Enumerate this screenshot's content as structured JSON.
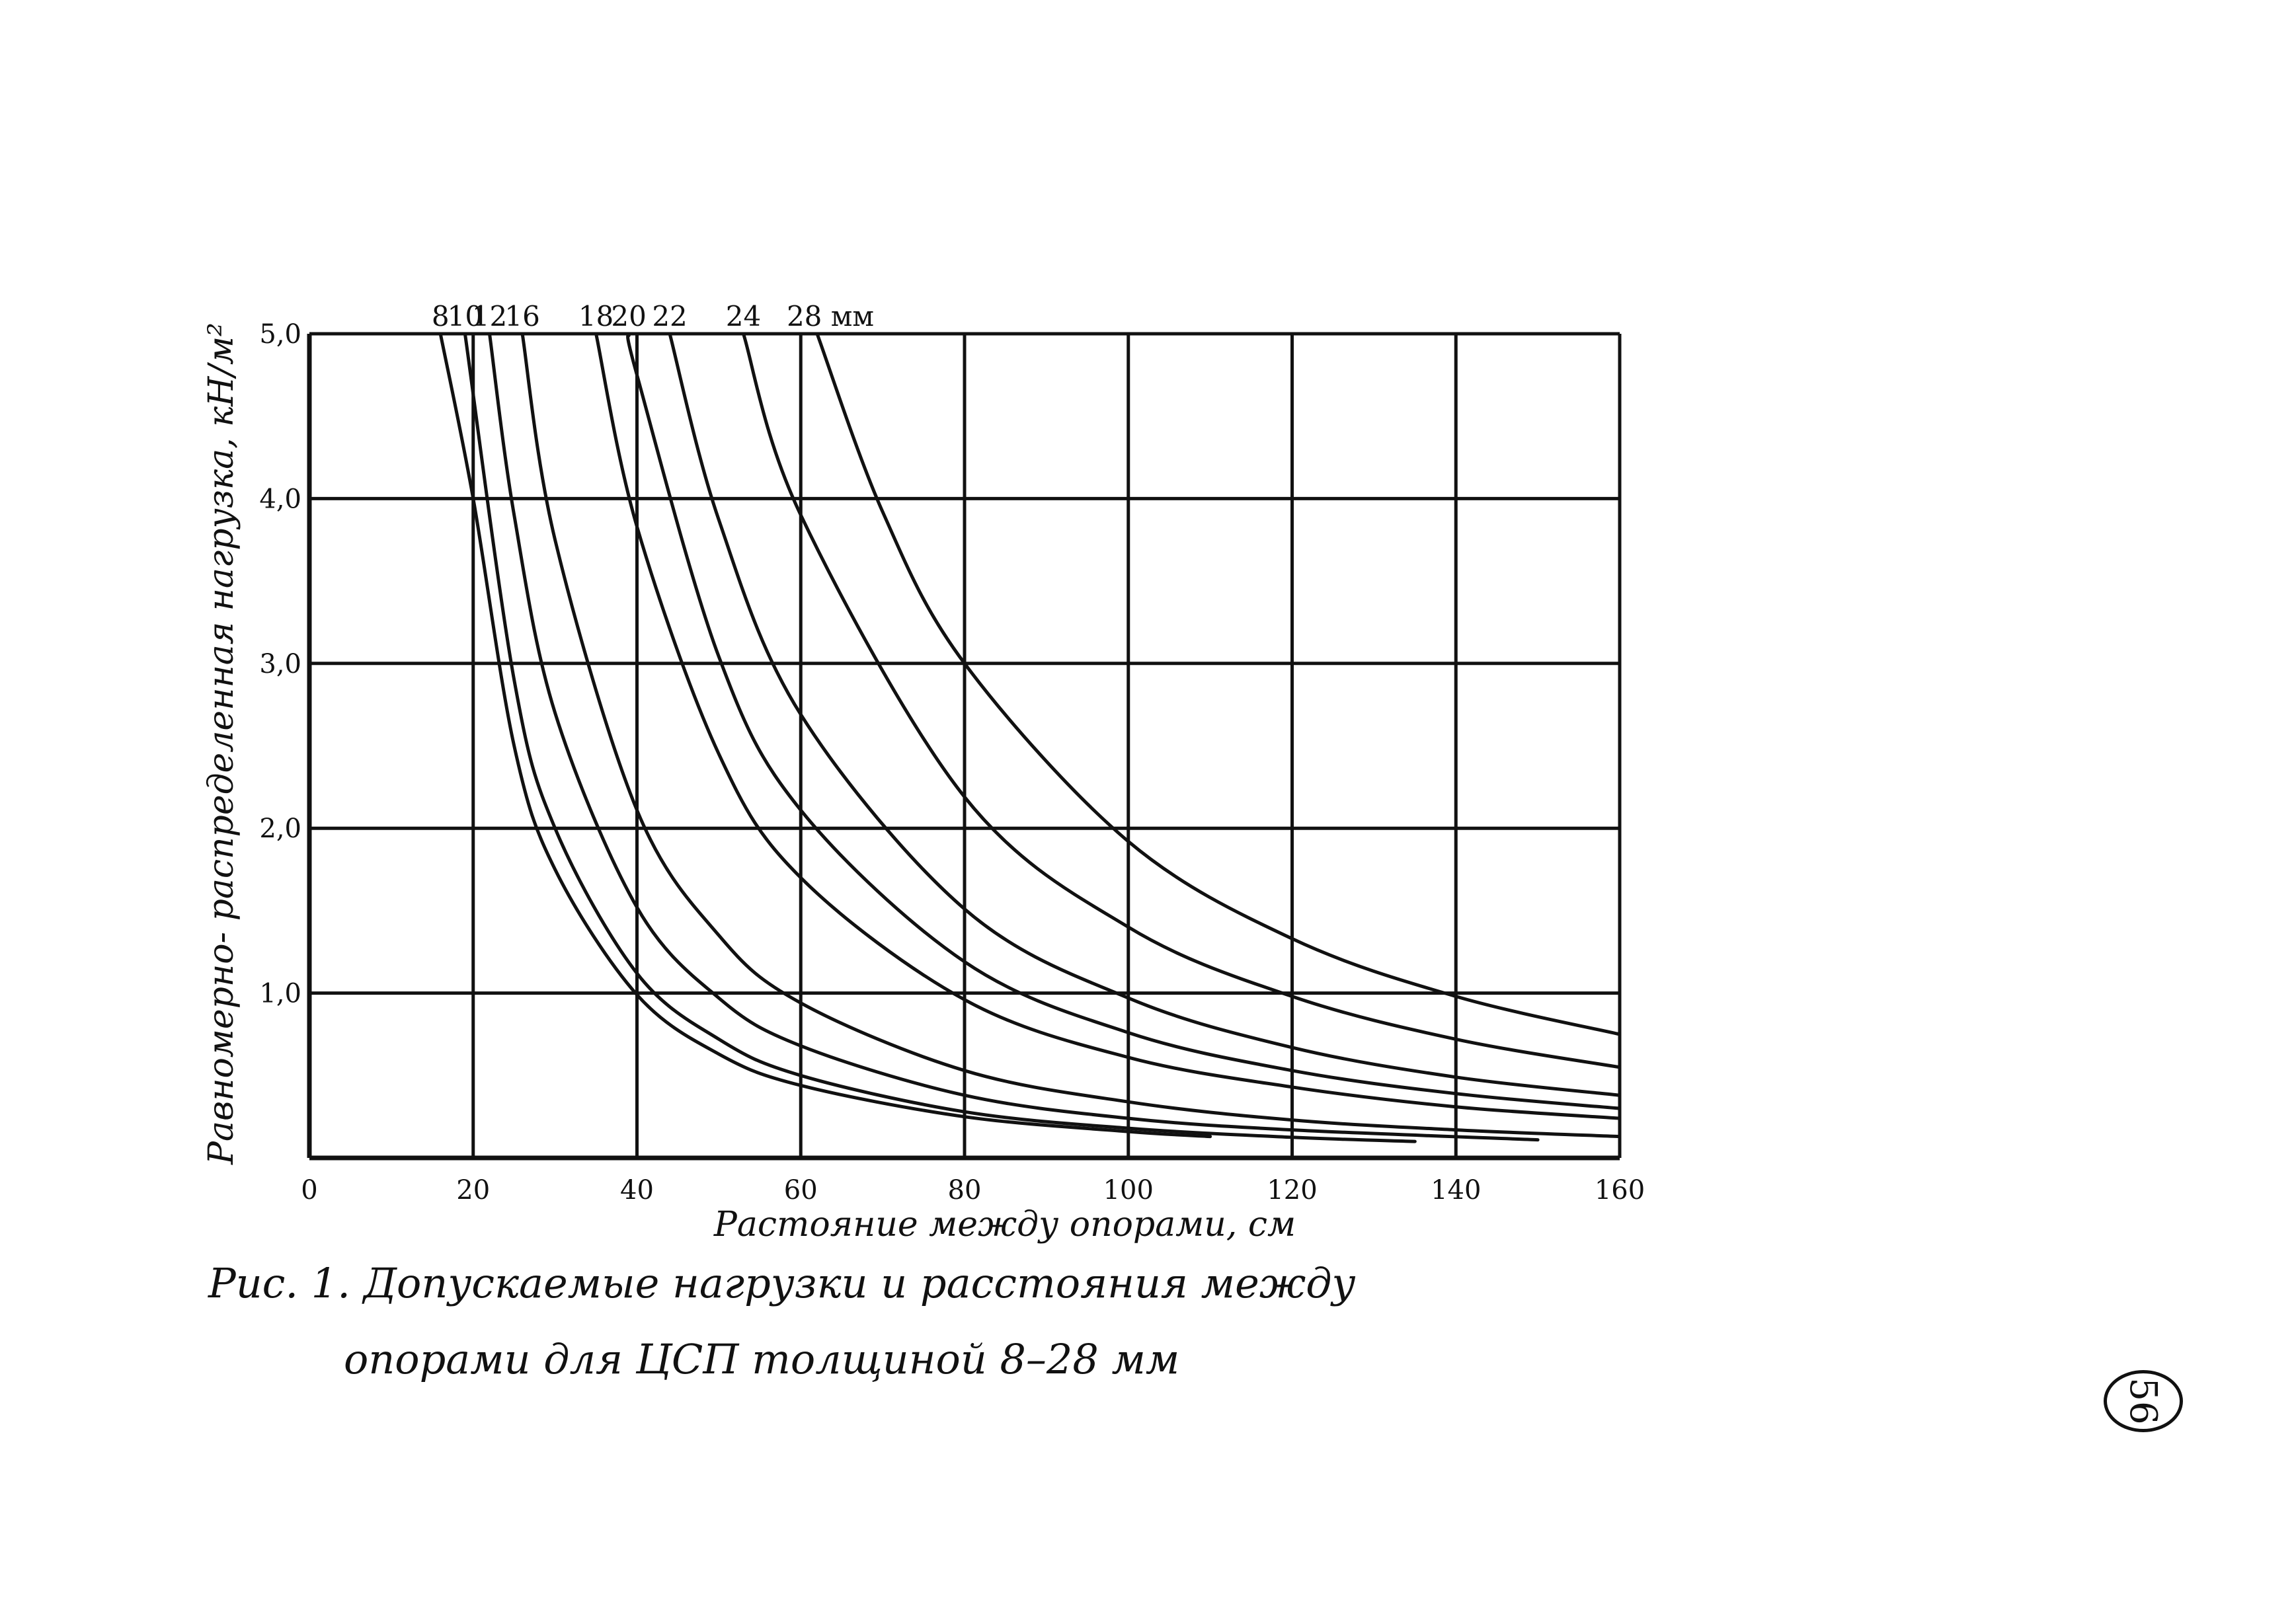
{
  "chart_data": {
    "type": "line",
    "xlabel": "Растояние между опорами, см",
    "ylabel": "Равномерно- распределенная нагрузка, кН/м²",
    "xlim": [
      0,
      160
    ],
    "ylim": [
      0,
      5.0
    ],
    "grid": true,
    "x_ticks": [
      "0",
      "20",
      "40",
      "60",
      "80",
      "100",
      "120",
      "140",
      "160"
    ],
    "y_ticks": [
      "5,0",
      "4,0",
      "3,0",
      "2,0",
      "1,0"
    ],
    "series": [
      {
        "name": "8",
        "x": [
          16,
          20,
          25,
          30,
          40,
          50,
          60,
          80,
          100,
          110
        ],
        "values": [
          5.0,
          4.0,
          2.5,
          1.75,
          0.99,
          0.63,
          0.44,
          0.25,
          0.16,
          0.13
        ]
      },
      {
        "name": "10",
        "x": [
          19,
          25,
          30,
          40,
          50,
          60,
          80,
          100,
          120,
          135
        ],
        "values": [
          5.0,
          2.9,
          2.0,
          1.12,
          0.72,
          0.5,
          0.28,
          0.18,
          0.125,
          0.1
        ]
      },
      {
        "name": "12",
        "x": [
          22,
          25,
          30,
          40,
          50,
          60,
          80,
          100,
          120,
          150
        ],
        "values": [
          5.0,
          3.9,
          2.7,
          1.52,
          0.97,
          0.68,
          0.38,
          0.24,
          0.17,
          0.11
        ]
      },
      {
        "name": "16",
        "x": [
          26,
          30,
          40,
          50,
          60,
          80,
          100,
          120,
          140,
          160
        ],
        "values": [
          5.0,
          3.75,
          2.11,
          1.35,
          0.94,
          0.53,
          0.34,
          0.23,
          0.17,
          0.13
        ]
      },
      {
        "name": "18",
        "x": [
          35,
          40,
          50,
          60,
          80,
          100,
          120,
          140,
          160
        ],
        "values": [
          5.0,
          3.83,
          2.45,
          1.7,
          0.96,
          0.61,
          0.43,
          0.31,
          0.24
        ]
      },
      {
        "name": "20",
        "x": [
          39,
          40,
          50,
          60,
          80,
          100,
          120,
          140,
          160
        ],
        "values": [
          5.0,
          4.75,
          3.04,
          2.11,
          1.19,
          0.76,
          0.53,
          0.39,
          0.3
        ]
      },
      {
        "name": "22",
        "x": [
          44,
          50,
          60,
          80,
          100,
          120,
          140,
          160
        ],
        "values": [
          5.0,
          3.87,
          2.69,
          1.51,
          0.97,
          0.67,
          0.49,
          0.38
        ]
      },
      {
        "name": "24",
        "x": [
          53,
          60,
          80,
          100,
          120,
          140,
          160
        ],
        "values": [
          5.0,
          3.9,
          2.19,
          1.4,
          0.98,
          0.72,
          0.55
        ]
      },
      {
        "name": "28 мм",
        "x": [
          62,
          70,
          80,
          100,
          120,
          140,
          160
        ],
        "values": [
          5.0,
          3.92,
          3.0,
          1.92,
          1.33,
          0.98,
          0.75
        ]
      }
    ]
  },
  "caption": {
    "line1": "Рис. 1. Допускаемые нагрузки и расстояния между",
    "line2": "опорами для ЦСП толщиной 8–28 мм"
  },
  "page_number": "56",
  "colors": {
    "ink": "#111111",
    "background": "#ffffff"
  }
}
